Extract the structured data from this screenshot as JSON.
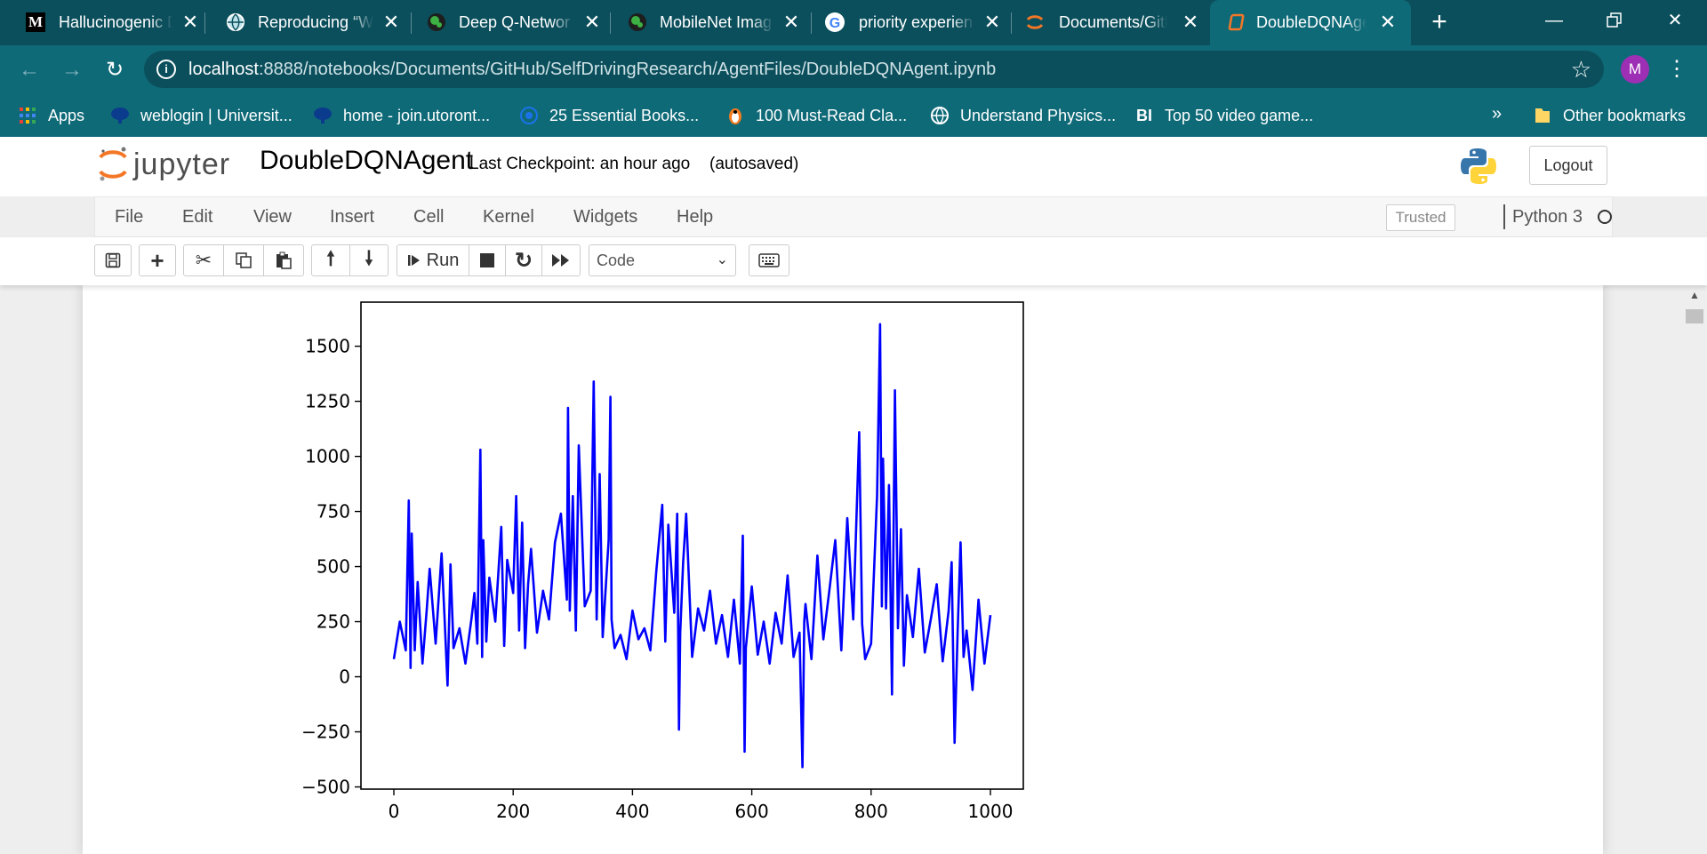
{
  "browser": {
    "tabs": [
      {
        "title": "Hallucinogenic D",
        "favicon": "medium-icon",
        "active": false
      },
      {
        "title": "Reproducing “W",
        "favicon": "globe-icon",
        "active": false
      },
      {
        "title": "Deep Q-Networ",
        "favicon": "globe-green-icon",
        "active": false
      },
      {
        "title": "MobileNet Imag",
        "favicon": "globe-green-icon",
        "active": false
      },
      {
        "title": "priority experien",
        "favicon": "google-icon",
        "active": false
      },
      {
        "title": "Documents/Gith",
        "favicon": "jupyter-icon",
        "active": false
      },
      {
        "title": "DoubleDQNAge",
        "favicon": "notebook-icon",
        "active": true
      }
    ],
    "url_host": "localhost",
    "url_path": ":8888/notebooks/Documents/GitHub/SelfDrivingResearch/AgentFiles/DoubleDQNAgent.ipynb",
    "profile_initial": "M",
    "bookmarks": [
      {
        "label": "Apps",
        "icon": "apps-grid-icon"
      },
      {
        "label": "weblogin | Universit...",
        "icon": "uoft-icon"
      },
      {
        "label": "home - join.utoront...",
        "icon": "uoft-icon"
      },
      {
        "label": "25 Essential Books...",
        "icon": "globe-icon"
      },
      {
        "label": "100 Must-Read Cla...",
        "icon": "penguin-icon"
      },
      {
        "label": "Understand Physics...",
        "icon": "globe-icon"
      },
      {
        "label": "Top 50 video game...",
        "icon": "bi-icon"
      }
    ],
    "bookmarks_more": "»",
    "other_bookmarks": "Other bookmarks"
  },
  "jupyter": {
    "logo_text": "jupyter",
    "notebook_name": "DoubleDQNAgent",
    "checkpoint": "Last Checkpoint: an hour ago",
    "autosave": "(autosaved)",
    "logout": "Logout",
    "menu": [
      "File",
      "Edit",
      "View",
      "Insert",
      "Cell",
      "Kernel",
      "Widgets",
      "Help"
    ],
    "trusted": "Trusted",
    "kernel": "Python 3",
    "run_label": "Run",
    "cell_type": "Code"
  },
  "chart_data": {
    "type": "line",
    "color": "#0000ff",
    "xlim": [
      0,
      1000
    ],
    "ylim": [
      -510,
      1700
    ],
    "xticks": [
      0,
      200,
      400,
      600,
      800,
      1000
    ],
    "yticks": [
      -500,
      -250,
      0,
      250,
      500,
      750,
      1000,
      1250,
      1500
    ],
    "x": [
      0,
      10,
      20,
      25,
      28,
      30,
      35,
      40,
      48,
      55,
      60,
      70,
      80,
      85,
      90,
      95,
      100,
      110,
      120,
      130,
      135,
      140,
      145,
      148,
      150,
      155,
      160,
      170,
      180,
      185,
      190,
      200,
      205,
      210,
      215,
      220,
      225,
      230,
      240,
      250,
      260,
      270,
      280,
      290,
      292,
      295,
      300,
      305,
      310,
      320,
      330,
      335,
      340,
      345,
      350,
      360,
      363,
      365,
      370,
      380,
      390,
      400,
      410,
      420,
      430,
      440,
      450,
      455,
      460,
      470,
      475,
      478,
      480,
      485,
      490,
      500,
      510,
      520,
      530,
      540,
      550,
      560,
      570,
      580,
      585,
      588,
      590,
      600,
      610,
      620,
      630,
      640,
      650,
      660,
      670,
      680,
      685,
      688,
      690,
      700,
      710,
      720,
      730,
      740,
      750,
      760,
      770,
      780,
      785,
      790,
      800,
      810,
      815,
      818,
      820,
      825,
      830,
      835,
      840,
      845,
      850,
      855,
      860,
      870,
      880,
      890,
      900,
      910,
      920,
      930,
      935,
      940,
      945,
      950,
      955,
      960,
      970,
      980,
      990,
      1000
    ],
    "y": [
      80,
      250,
      120,
      800,
      40,
      650,
      120,
      430,
      60,
      300,
      490,
      150,
      560,
      270,
      -40,
      510,
      130,
      220,
      60,
      260,
      380,
      150,
      1030,
      90,
      620,
      160,
      450,
      250,
      680,
      140,
      530,
      380,
      820,
      210,
      700,
      130,
      420,
      580,
      200,
      390,
      260,
      610,
      740,
      350,
      1220,
      300,
      820,
      210,
      1050,
      320,
      390,
      1340,
      260,
      920,
      180,
      620,
      1270,
      260,
      130,
      190,
      80,
      300,
      170,
      220,
      120,
      480,
      780,
      160,
      690,
      290,
      740,
      -240,
      200,
      520,
      740,
      90,
      310,
      210,
      390,
      150,
      280,
      90,
      350,
      60,
      640,
      -340,
      130,
      410,
      100,
      250,
      60,
      290,
      150,
      460,
      90,
      200,
      -410,
      250,
      330,
      80,
      550,
      170,
      390,
      620,
      120,
      720,
      260,
      1110,
      240,
      80,
      150,
      820,
      1600,
      320,
      990,
      310,
      870,
      -80,
      1300,
      220,
      670,
      50,
      370,
      180,
      490,
      110,
      260,
      420,
      70,
      300,
      520,
      -300,
      200,
      610,
      90,
      210,
      -60,
      350,
      60,
      280
    ]
  }
}
